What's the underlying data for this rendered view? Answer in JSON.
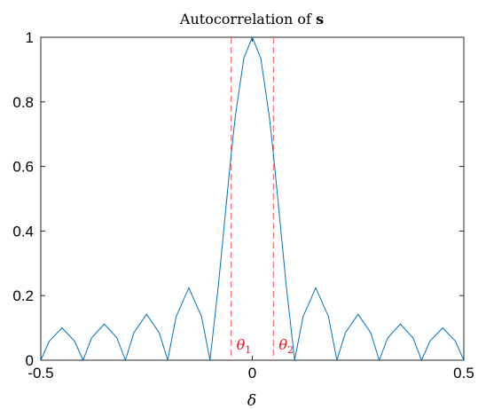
{
  "chart_data": {
    "type": "line",
    "title": "Autocorrelation of ",
    "title_bold": "s",
    "xlabel": "δ",
    "ylabel": "",
    "xlim": [
      -0.5,
      0.5
    ],
    "ylim": [
      0,
      1
    ],
    "grid": false,
    "x_ticks": [
      -0.5,
      0,
      0.5
    ],
    "x_tick_labels": [
      "-0.5",
      "0",
      "0.5"
    ],
    "y_ticks": [
      0,
      0.2,
      0.4,
      0.6,
      0.8,
      1
    ],
    "y_tick_labels": [
      "0",
      "0.2",
      "0.4",
      "0.6",
      "0.8",
      "1"
    ],
    "line_color": "#0072BD",
    "series": [
      {
        "x": [
          -0.5,
          -0.48,
          -0.45,
          -0.42,
          -0.4,
          -0.38,
          -0.35,
          -0.32,
          -0.3,
          -0.28,
          -0.25,
          -0.22,
          -0.2,
          -0.18,
          -0.15,
          -0.12,
          -0.1,
          -0.08,
          -0.06,
          -0.05,
          -0.04,
          -0.02,
          0,
          0.02,
          0.04,
          0.05,
          0.06,
          0.08,
          0.1,
          0.12,
          0.15,
          0.18,
          0.2,
          0.22,
          0.25,
          0.28,
          0.3,
          0.32,
          0.35,
          0.38,
          0.4,
          0.42,
          0.45,
          0.48,
          0.5
        ],
        "y": [
          0,
          0.059,
          0.1,
          0.059,
          0,
          0.069,
          0.112,
          0.069,
          0,
          0.085,
          0.142,
          0.085,
          0,
          0.135,
          0.224,
          0.135,
          0,
          0.234,
          0.504,
          0.637,
          0.757,
          0.935,
          1,
          0.935,
          0.757,
          0.637,
          0.504,
          0.234,
          0,
          0.135,
          0.224,
          0.135,
          0,
          0.085,
          0.142,
          0.085,
          0,
          0.069,
          0.112,
          0.069,
          0,
          0.059,
          0.1,
          0.059,
          0
        ]
      }
    ],
    "vlines": [
      {
        "x": -0.05,
        "color": "#FF6E6E",
        "style": "dashed",
        "label": "θ",
        "subscript": "1"
      },
      {
        "x": 0.05,
        "color": "#FF6E6E",
        "style": "dashed",
        "label": "θ",
        "subscript": "2"
      }
    ],
    "annotation_color": "#E8101E"
  }
}
